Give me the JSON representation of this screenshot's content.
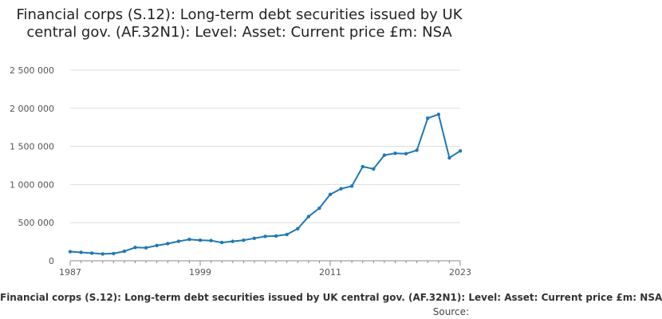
{
  "title": "Financial corps (S.12): Long-term debt securities issued by UK central gov. (AF.32N1): Level: Asset: Current price £m: NSA",
  "footer_series": "Financial corps (S.12): Long-term debt securities issued by UK central gov. (AF.32N1): Level: Asset: Current price £m: NSA",
  "source_label": "Source:",
  "colors": {
    "line": "#1f78b4",
    "grid": "#dddddd",
    "axis": "#888888"
  },
  "chart_data": {
    "type": "line",
    "title": "Financial corps (S.12): Long-term debt securities issued by UK central gov. (AF.32N1): Level: Asset: Current price £m: NSA",
    "xlabel": "",
    "ylabel": "",
    "xlim": [
      1987,
      2023
    ],
    "ylim": [
      0,
      2500000
    ],
    "grid": true,
    "x_ticks": [
      1987,
      1999,
      2011,
      2023
    ],
    "y_ticks": [
      0,
      500000,
      1000000,
      1500000,
      2000000,
      2500000
    ],
    "y_tick_labels": [
      "0",
      "500 000",
      "1 000 000",
      "1 500 000",
      "2 000 000",
      "2 500 000"
    ],
    "series": [
      {
        "x": [
          1987,
          1988,
          1989,
          1990,
          1991,
          1992,
          1993,
          1994,
          1995,
          1996,
          1997,
          1998,
          1999,
          2000,
          2001,
          2002,
          2003,
          2004,
          2005,
          2006,
          2007,
          2008,
          2009,
          2010,
          2011,
          2012,
          2013,
          2014,
          2015,
          2016,
          2017,
          2018,
          2019,
          2020,
          2021,
          2022,
          2023
        ],
        "values": [
          120000,
          110000,
          100000,
          90000,
          95000,
          125000,
          175000,
          170000,
          200000,
          225000,
          255000,
          280000,
          270000,
          265000,
          240000,
          255000,
          270000,
          295000,
          320000,
          325000,
          345000,
          420000,
          580000,
          690000,
          870000,
          945000,
          980000,
          1235000,
          1205000,
          1385000,
          1410000,
          1405000,
          1450000,
          1870000,
          1920000,
          1350000,
          1440000
        ]
      }
    ]
  }
}
